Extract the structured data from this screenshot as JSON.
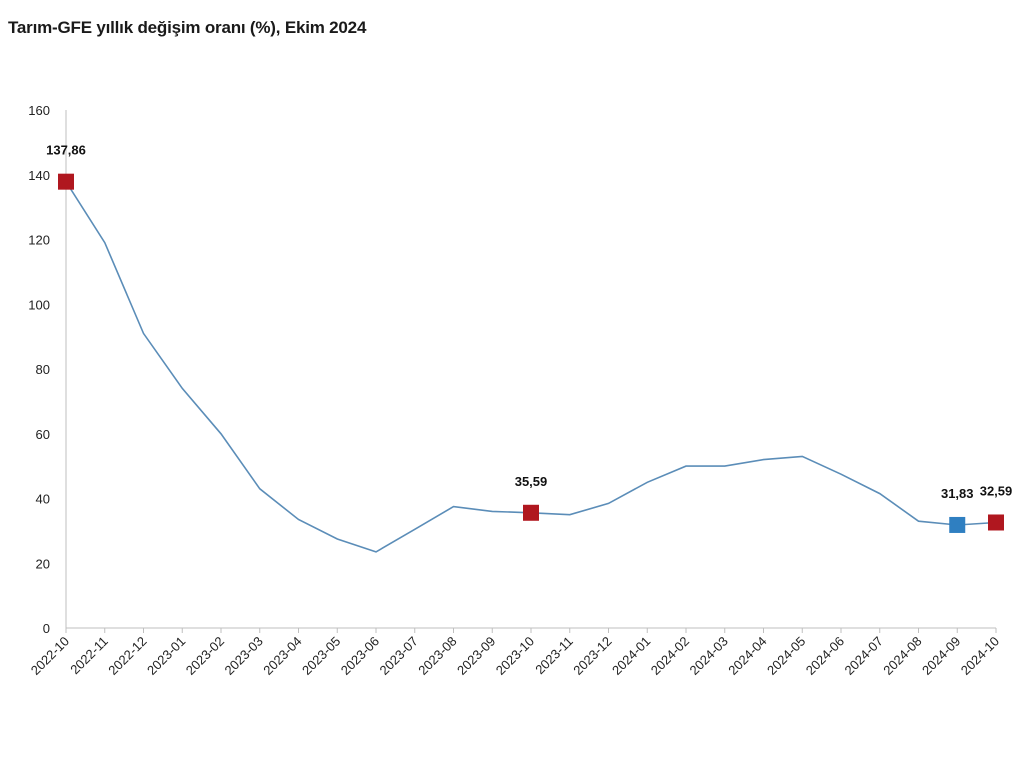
{
  "chart_data": {
    "type": "line",
    "title": "Tarım-GFE yıllık değişim oranı (%), Ekim 2024",
    "xlabel": "",
    "ylabel": "",
    "ylim": [
      0,
      160
    ],
    "yticks": [
      0,
      20,
      40,
      60,
      80,
      100,
      120,
      140,
      160
    ],
    "grid": false,
    "categories": [
      "2022-10",
      "2022-11",
      "2022-12",
      "2023-01",
      "2023-02",
      "2023-03",
      "2023-04",
      "2023-05",
      "2023-06",
      "2023-07",
      "2023-08",
      "2023-09",
      "2023-10",
      "2023-11",
      "2023-12",
      "2024-01",
      "2024-02",
      "2024-03",
      "2024-04",
      "2024-05",
      "2024-06",
      "2024-07",
      "2024-08",
      "2024-09",
      "2024-10"
    ],
    "series": [
      {
        "values": [
          137.86,
          119,
          91,
          74,
          60,
          43,
          33.5,
          27.5,
          23.5,
          30.5,
          37.5,
          36,
          35.59,
          35,
          38.5,
          45,
          50,
          50,
          52,
          53,
          47.5,
          41.5,
          33,
          31.83,
          32.59
        ],
        "color": "#5b8db8"
      }
    ],
    "highlighted_points": [
      {
        "category": "2022-10",
        "label": "137,86",
        "color": "#b0171f"
      },
      {
        "category": "2023-10",
        "label": "35,59",
        "color": "#b0171f"
      },
      {
        "category": "2024-09",
        "label": "31,83",
        "color": "#2f7fc1"
      },
      {
        "category": "2024-10",
        "label": "32,59",
        "color": "#b0171f"
      }
    ],
    "axis_color": "#bfbfbf"
  }
}
